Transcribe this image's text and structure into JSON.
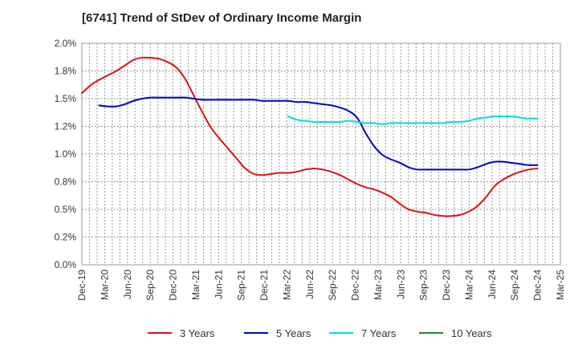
{
  "chart_data": {
    "type": "line",
    "title": "[6741]  Trend of StDev of Ordinary Income Margin",
    "xlabel": "",
    "ylabel": "",
    "ylim": [
      0,
      2.0
    ],
    "grid": true,
    "legend_placement": "bottom",
    "y_ticks": [
      {
        "value": 0.0,
        "label": "0.0%"
      },
      {
        "value": 0.25,
        "label": "0.2%"
      },
      {
        "value": 0.5,
        "label": "0.5%"
      },
      {
        "value": 0.75,
        "label": "0.8%"
      },
      {
        "value": 1.0,
        "label": "1.0%"
      },
      {
        "value": 1.25,
        "label": "1.2%"
      },
      {
        "value": 1.5,
        "label": "1.5%"
      },
      {
        "value": 1.75,
        "label": "1.8%"
      },
      {
        "value": 2.0,
        "label": "2.0%"
      }
    ],
    "x_ticks": [
      "Dec-19",
      "Mar-20",
      "Jun-20",
      "Sep-20",
      "Dec-20",
      "Mar-21",
      "Jun-21",
      "Sep-21",
      "Dec-21",
      "Mar-22",
      "Jun-22",
      "Sep-22",
      "Dec-22",
      "Mar-23",
      "Jun-23",
      "Sep-23",
      "Dec-23",
      "Mar-24",
      "Jun-24",
      "Sep-24",
      "Dec-24",
      "Mar-25"
    ],
    "series": [
      {
        "name": "3 Years",
        "color": "#dd1111",
        "values": [
          1.55,
          1.62,
          1.67,
          1.71,
          1.75,
          1.8,
          1.85,
          1.87,
          1.87,
          1.86,
          1.83,
          1.78,
          1.68,
          1.53,
          1.38,
          1.24,
          1.14,
          1.05,
          0.96,
          0.87,
          0.82,
          0.81,
          0.82,
          0.83,
          0.83,
          0.84,
          0.86,
          0.87,
          0.86,
          0.84,
          0.81,
          0.77,
          0.73,
          0.7,
          0.68,
          0.65,
          0.61,
          0.55,
          0.5,
          0.48,
          0.47,
          0.45,
          0.44,
          0.44,
          0.45,
          0.48,
          0.53,
          0.61,
          0.71,
          0.77,
          0.81,
          0.84,
          0.86,
          0.87
        ]
      },
      {
        "name": "5 Years",
        "color": "#0000cc",
        "values": [
          null,
          null,
          1.44,
          1.43,
          1.43,
          1.45,
          1.48,
          1.5,
          1.51,
          1.51,
          1.51,
          1.51,
          1.51,
          1.5,
          1.49,
          1.49,
          1.49,
          1.49,
          1.49,
          1.49,
          1.49,
          1.48,
          1.48,
          1.48,
          1.48,
          1.47,
          1.47,
          1.46,
          1.45,
          1.44,
          1.42,
          1.39,
          1.33,
          1.19,
          1.07,
          0.99,
          0.95,
          0.92,
          0.88,
          0.86,
          0.86,
          0.86,
          0.86,
          0.86,
          0.86,
          0.86,
          0.88,
          0.91,
          0.93,
          0.93,
          0.92,
          0.91,
          0.9,
          0.9
        ]
      },
      {
        "name": "7 Years",
        "color": "#00dddd",
        "values": [
          null,
          null,
          null,
          null,
          null,
          null,
          null,
          null,
          null,
          null,
          null,
          null,
          null,
          null,
          null,
          null,
          null,
          null,
          null,
          null,
          null,
          null,
          null,
          null,
          1.34,
          1.31,
          1.3,
          1.29,
          1.29,
          1.29,
          1.29,
          1.3,
          1.29,
          1.28,
          1.28,
          1.27,
          1.28,
          1.28,
          1.28,
          1.28,
          1.28,
          1.28,
          1.28,
          1.29,
          1.29,
          1.3,
          1.32,
          1.33,
          1.34,
          1.34,
          1.34,
          1.33,
          1.32,
          1.32
        ]
      },
      {
        "name": "10 Years",
        "color": "#228822",
        "values": []
      }
    ]
  }
}
